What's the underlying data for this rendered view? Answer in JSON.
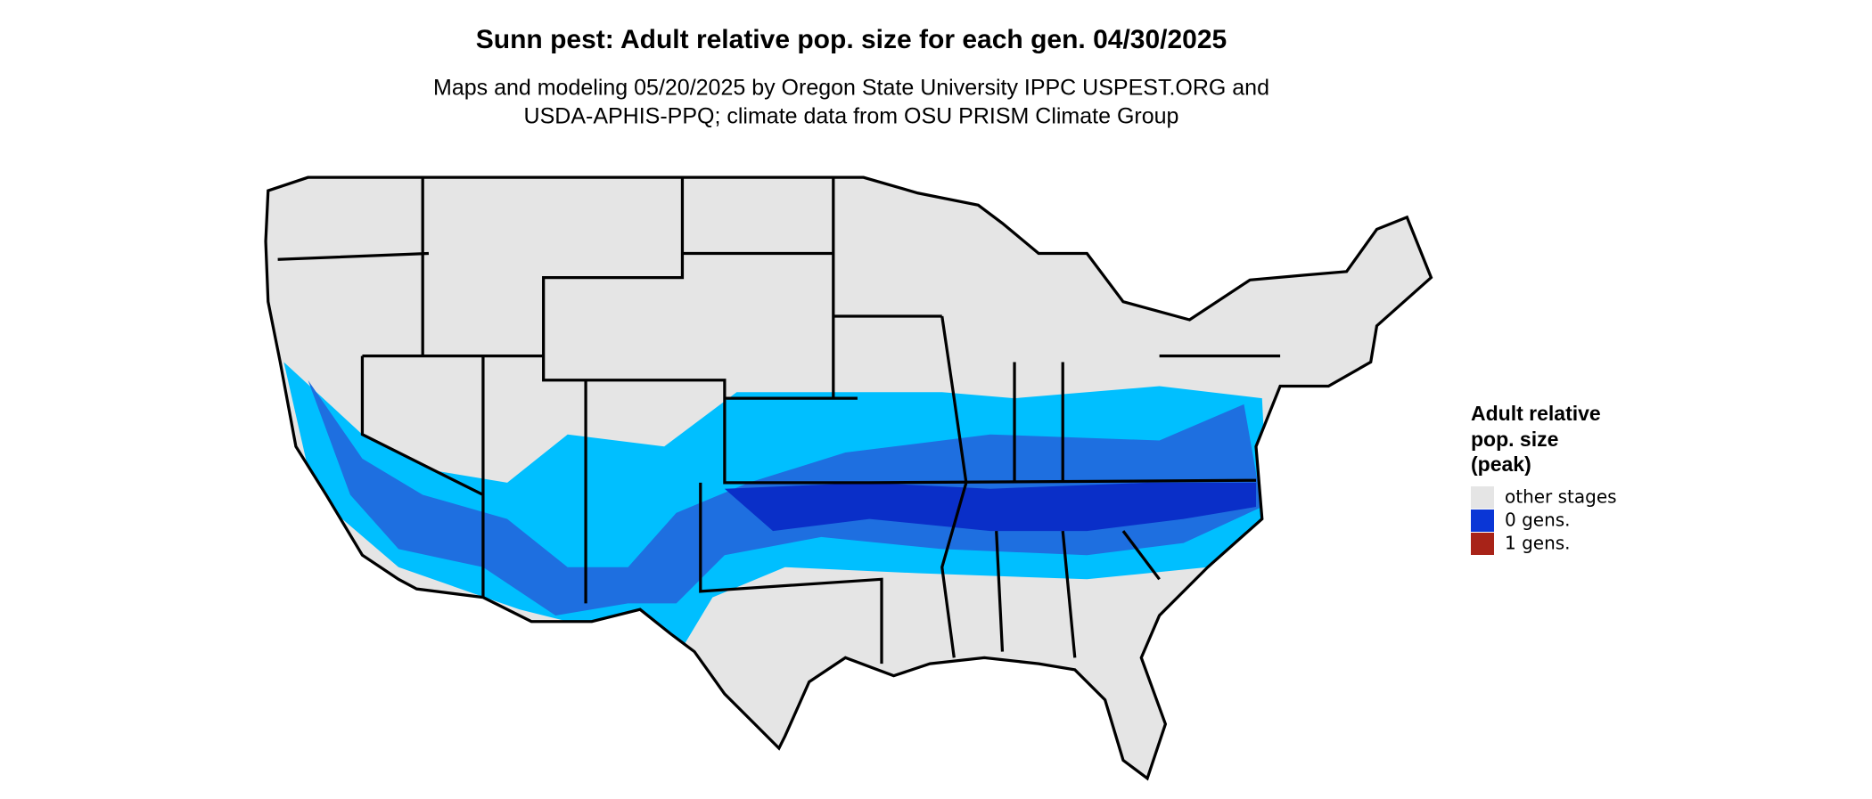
{
  "title": "Sunn pest: Adult relative pop. size for each gen. 04/30/2025",
  "subtitle": [
    "Maps and modeling 05/20/2025 by Oregon State University IPPC USPEST.ORG and",
    "USDA-APHIS-PPQ; climate data from OSU PRISM Climate Group"
  ],
  "legend": {
    "title": [
      "Adult relative",
      "pop. size",
      "(peak)"
    ],
    "entries": [
      {
        "label": "other stages",
        "color": "#e5e5e5"
      },
      {
        "label": "0 gens.",
        "color": "#0a36d6"
      },
      {
        "label": "1 gens.",
        "color": "#a82318"
      }
    ]
  }
}
